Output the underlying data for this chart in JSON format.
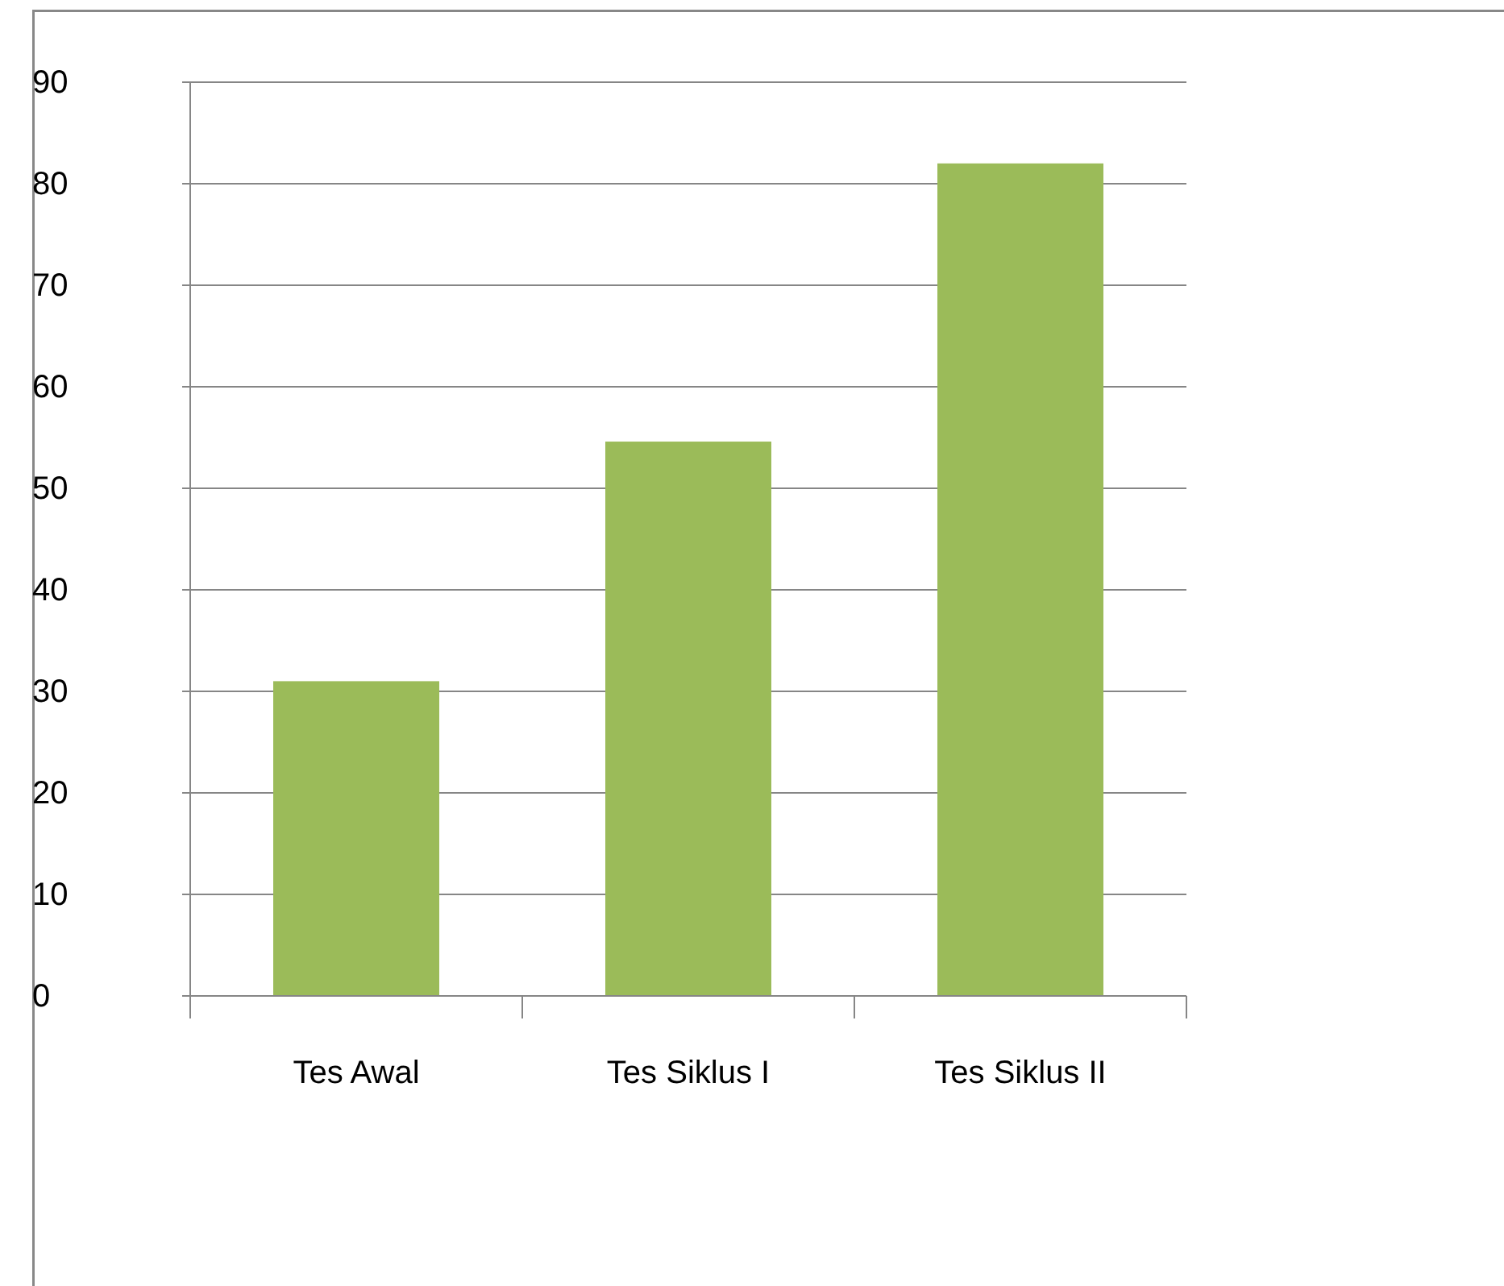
{
  "chart_data": {
    "type": "bar",
    "categories": [
      "Tes Awal",
      "Tes Siklus I",
      "Tes Siklus II"
    ],
    "values": [
      31,
      54.6,
      82
    ],
    "color": "#9bbb59",
    "ylim": [
      0,
      90
    ],
    "yticks": [
      0,
      10,
      20,
      30,
      40,
      50,
      60,
      70,
      80,
      90
    ],
    "grid": "y"
  }
}
